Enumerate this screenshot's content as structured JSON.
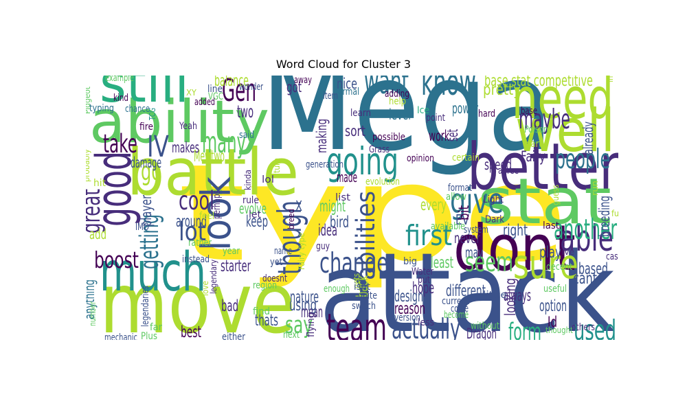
{
  "chart_data": {
    "type": "wordcloud",
    "title": "Word Cloud for Cluster 3",
    "palette": [
      "#440154",
      "#472d7b",
      "#3b528b",
      "#2c728e",
      "#21918c",
      "#28ae80",
      "#5ec962",
      "#addc30",
      "#fde725"
    ],
    "words": [
      {
        "text": "type",
        "weight": 100,
        "color": "#fde725"
      },
      {
        "text": "Mega",
        "weight": 92,
        "color": "#2c728e"
      },
      {
        "text": "attack",
        "weight": 82,
        "color": "#3b528b"
      },
      {
        "text": "move",
        "weight": 62,
        "color": "#addc30"
      },
      {
        "text": "battle",
        "weight": 48,
        "color": "#addc30"
      },
      {
        "text": "better",
        "weight": 48,
        "color": "#472d7b"
      },
      {
        "text": "stat",
        "weight": 47,
        "color": "#5ec962"
      },
      {
        "text": "dont",
        "weight": 47,
        "color": "#440154"
      },
      {
        "text": "ability",
        "weight": 44,
        "color": "#5ec962"
      },
      {
        "text": "well",
        "weight": 44,
        "color": "#addc30"
      },
      {
        "text": "need",
        "weight": 42,
        "color": "#addc30"
      },
      {
        "text": "still",
        "weight": 40,
        "color": "#28ae80"
      },
      {
        "text": "much",
        "weight": 40,
        "color": "#21918c"
      },
      {
        "text": "good",
        "weight": 36,
        "color": "#472d7b"
      },
      {
        "text": "look",
        "weight": 30,
        "color": "#3b528b"
      },
      {
        "text": "sure",
        "weight": 30,
        "color": "#addc30"
      },
      {
        "text": "going",
        "weight": 28,
        "color": "#21918c"
      },
      {
        "text": "team",
        "weight": 28,
        "color": "#440154"
      },
      {
        "text": "know",
        "weight": 27,
        "color": "#2c728e"
      },
      {
        "text": "able",
        "weight": 27,
        "color": "#472d7b"
      },
      {
        "text": "give",
        "weight": 26,
        "color": "#2c728e"
      },
      {
        "text": "want",
        "weight": 25,
        "color": "#2c728e"
      },
      {
        "text": "though",
        "weight": 24,
        "color": "#3b528b"
      },
      {
        "text": "Gen",
        "weight": 23,
        "color": "#440154"
      },
      {
        "text": "many",
        "weight": 22,
        "color": "#5ec962"
      },
      {
        "text": "IV",
        "weight": 22,
        "color": "#3b528b"
      },
      {
        "text": "change",
        "weight": 21,
        "color": "#3b528b"
      },
      {
        "text": "first",
        "weight": 21,
        "color": "#21918c"
      },
      {
        "text": "another",
        "weight": 21,
        "color": "#28ae80"
      },
      {
        "text": "actually",
        "weight": 21,
        "color": "#3b528b"
      },
      {
        "text": "used",
        "weight": 21,
        "color": "#21918c"
      },
      {
        "text": "maybe",
        "weight": 20,
        "color": "#472d7b"
      },
      {
        "text": "seem",
        "weight": 20,
        "color": "#5ec962"
      },
      {
        "text": "people",
        "weight": 20,
        "color": "#2c728e"
      },
      {
        "text": "abilities",
        "weight": 19,
        "color": "#3b528b"
      },
      {
        "text": "getting",
        "weight": 19,
        "color": "#2c728e"
      },
      {
        "text": "great",
        "weight": 19,
        "color": "#472d7b"
      },
      {
        "text": "cool",
        "weight": 19,
        "color": "#472d7b"
      },
      {
        "text": "lot",
        "weight": 19,
        "color": "#3b528b"
      },
      {
        "text": "go",
        "weight": 19,
        "color": "#addc30"
      },
      {
        "text": "take",
        "weight": 19,
        "color": "#440154"
      },
      {
        "text": "form",
        "weight": 18,
        "color": "#28ae80"
      },
      {
        "text": "say",
        "weight": 18,
        "color": "#5ec962"
      },
      {
        "text": "boost",
        "weight": 17,
        "color": "#440154"
      },
      {
        "text": "two",
        "weight": 13,
        "color": "#472d7b"
      },
      {
        "text": "base stat competitive",
        "weight": 12,
        "color": "#addc30"
      },
      {
        "text": "pretty",
        "weight": 12,
        "color": "#addc30"
      },
      {
        "text": "balance",
        "weight": 12,
        "color": "#addc30"
      },
      {
        "text": "Mewtwo",
        "weight": 12,
        "color": "#addc30"
      },
      {
        "text": "makes",
        "weight": 11,
        "color": "#472d7b"
      },
      {
        "text": "damage",
        "weight": 11,
        "color": "#3b528b"
      },
      {
        "text": "player",
        "weight": 11,
        "color": "#3b528b"
      },
      {
        "text": "around",
        "weight": 12,
        "color": "#3b528b"
      },
      {
        "text": "keep",
        "weight": 12,
        "color": "#3b528b"
      },
      {
        "text": "evolve",
        "weight": 11,
        "color": "#5ec962"
      },
      {
        "text": "starter",
        "weight": 12,
        "color": "#472d7b"
      },
      {
        "text": "nature",
        "weight": 12,
        "color": "#3b528b"
      },
      {
        "text": "hope",
        "weight": 12,
        "color": "#472d7b"
      },
      {
        "text": "different",
        "weight": 12,
        "color": "#3b528b"
      },
      {
        "text": "always",
        "weight": 12,
        "color": "#472d7b"
      },
      {
        "text": "option",
        "weight": 12,
        "color": "#3b528b"
      },
      {
        "text": "might",
        "weight": 12,
        "color": "#5ec962"
      },
      {
        "text": "bird",
        "weight": 12,
        "color": "#3b528b"
      },
      {
        "text": "idea",
        "weight": 12,
        "color": "#472d7b"
      },
      {
        "text": "every",
        "weight": 12,
        "color": "#addc30"
      },
      {
        "text": "least",
        "weight": 12,
        "color": "#5ec962"
      },
      {
        "text": "design",
        "weight": 12,
        "color": "#3b528b"
      },
      {
        "text": "reason",
        "weight": 12,
        "color": "#440154"
      },
      {
        "text": "back",
        "weight": 12,
        "color": "#addc30"
      },
      {
        "text": "mean",
        "weight": 12,
        "color": "#472d7b"
      },
      {
        "text": "using",
        "weight": 12,
        "color": "#3b528b"
      },
      {
        "text": "thats",
        "weight": 12,
        "color": "#3b528b"
      },
      {
        "text": "bad",
        "weight": 12,
        "color": "#472d7b"
      },
      {
        "text": "best",
        "weight": 12,
        "color": "#440154"
      },
      {
        "text": "Dragon",
        "weight": 11,
        "color": "#472d7b"
      },
      {
        "text": "Id",
        "weight": 11,
        "color": "#440154"
      },
      {
        "text": "based",
        "weight": 12,
        "color": "#3b528b"
      },
      {
        "text": "cant",
        "weight": 12,
        "color": "#3b528b"
      },
      {
        "text": "play",
        "weight": 12,
        "color": "#3b528b"
      },
      {
        "text": "right",
        "weight": 12,
        "color": "#3b528b"
      },
      {
        "text": "looking",
        "weight": 11,
        "color": "#472d7b"
      },
      {
        "text": "speed",
        "weight": 11,
        "color": "#472d7b"
      },
      {
        "text": "Fairy",
        "weight": 11,
        "color": "#472d7b"
      },
      {
        "text": "breeding",
        "weight": 11,
        "color": "#3b528b"
      },
      {
        "text": "already",
        "weight": 10,
        "color": "#3b528b"
      },
      {
        "text": "work",
        "weight": 11,
        "color": "#440154"
      },
      {
        "text": "set",
        "weight": 11,
        "color": "#472d7b"
      },
      {
        "text": "power",
        "weight": 11,
        "color": "#2c728e"
      },
      {
        "text": "level",
        "weight": 11,
        "color": "#2c728e"
      },
      {
        "text": "sort",
        "weight": 11,
        "color": "#472d7b"
      },
      {
        "text": "making",
        "weight": 10,
        "color": "#472d7b"
      },
      {
        "text": "made",
        "weight": 10,
        "color": "#440154"
      },
      {
        "text": "never",
        "weight": 11,
        "color": "#472d7b"
      },
      {
        "text": "may",
        "weight": 11,
        "color": "#3b528b"
      },
      {
        "text": "nice",
        "weight": 11,
        "color": "#3b528b"
      },
      {
        "text": "got",
        "weight": 11,
        "color": "#472d7b"
      },
      {
        "text": "EV",
        "weight": 10,
        "color": "#3b528b"
      },
      {
        "text": "bit",
        "weight": 10,
        "color": "#440154"
      },
      {
        "text": "X",
        "weight": 10,
        "color": "#3b528b"
      },
      {
        "text": "anything",
        "weight": 10,
        "color": "#2c728e"
      },
      {
        "text": "add",
        "weight": 10,
        "color": "#addc30"
      },
      {
        "text": "example",
        "weight": 7,
        "color": "#5ec962"
      },
      {
        "text": "kind",
        "weight": 7,
        "color": "#440154"
      },
      {
        "text": "Pidgeot",
        "weight": 6,
        "color": "#5ec962"
      },
      {
        "text": "typing",
        "weight": 7,
        "color": "#2c728e"
      },
      {
        "text": "chance",
        "weight": 7,
        "color": "#2c728e"
      },
      {
        "text": "TCG",
        "weight": 6,
        "color": "#21918c"
      },
      {
        "text": "fire",
        "weight": 7,
        "color": "#440154"
      },
      {
        "text": "Yeah",
        "weight": 7,
        "color": "#472d7b"
      },
      {
        "text": "XY",
        "weight": 6,
        "color": "#addc30"
      },
      {
        "text": "line",
        "weight": 7,
        "color": "#3b528b"
      },
      {
        "text": "VGC",
        "weight": 7,
        "color": "#5ec962"
      },
      {
        "text": "added",
        "weight": 7,
        "color": "#440154"
      },
      {
        "text": "wonder",
        "weight": 7,
        "color": "#3b528b"
      },
      {
        "text": "said",
        "weight": 7,
        "color": "#2c728e"
      },
      {
        "text": "away",
        "weight": 7,
        "color": "#440154"
      },
      {
        "text": "normal",
        "weight": 7,
        "color": "#2c728e"
      },
      {
        "text": "item",
        "weight": 7,
        "color": "#3b528b"
      },
      {
        "text": "adding",
        "weight": 7,
        "color": "#440154"
      },
      {
        "text": "help",
        "weight": 7,
        "color": "#addc30"
      },
      {
        "text": "learn",
        "weight": 7,
        "color": "#472d7b"
      },
      {
        "text": "Ice",
        "weight": 7,
        "color": "#28ae80"
      },
      {
        "text": "point",
        "weight": 7,
        "color": "#472d7b"
      },
      {
        "text": "hard",
        "weight": 7,
        "color": "#440154"
      },
      {
        "text": "base",
        "weight": 7,
        "color": "#440154"
      },
      {
        "text": "Poison",
        "weight": 7,
        "color": "#5ec962"
      },
      {
        "text": "interesting",
        "weight": 6,
        "color": "#addc30"
      },
      {
        "text": "possible",
        "weight": 7,
        "color": "#440154"
      },
      {
        "text": "Grass",
        "weight": 7,
        "color": "#472d7b"
      },
      {
        "text": "part",
        "weight": 7,
        "color": "#addc30"
      },
      {
        "text": "opinion",
        "weight": 7,
        "color": "#440154"
      },
      {
        "text": "certain",
        "weight": 7,
        "color": "#addc30"
      },
      {
        "text": "generation",
        "weight": 7,
        "color": "#3b528b"
      },
      {
        "text": "agree",
        "weight": 7,
        "color": "#472d7b"
      },
      {
        "text": "turn",
        "weight": 6,
        "color": "#addc30"
      },
      {
        "text": "kinda",
        "weight": 6,
        "color": "#472d7b"
      },
      {
        "text": "lol",
        "weight": 7,
        "color": "#472d7b"
      },
      {
        "text": "guess",
        "weight": 6,
        "color": "#addc30"
      },
      {
        "text": "run",
        "weight": 6,
        "color": "#addc30"
      },
      {
        "text": "hit",
        "weight": 7,
        "color": "#addc30"
      },
      {
        "text": "probably",
        "weight": 6,
        "color": "#addc30"
      },
      {
        "text": "evolution",
        "weight": 7,
        "color": "#addc30"
      },
      {
        "text": "format",
        "weight": 7,
        "color": "#3b528b"
      },
      {
        "text": "allow",
        "weight": 7,
        "color": "#5ec962"
      },
      {
        "text": "Light",
        "weight": 7,
        "color": "#472d7b"
      },
      {
        "text": "Dark",
        "weight": 7,
        "color": "#472d7b"
      },
      {
        "text": "last",
        "weight": 7,
        "color": "#440154"
      },
      {
        "text": "breed",
        "weight": 6,
        "color": "#440154"
      },
      {
        "text": "rule",
        "weight": 7,
        "color": "#472d7b"
      },
      {
        "text": "perhaps",
        "weight": 7,
        "color": "#472d7b"
      },
      {
        "text": "feel",
        "weight": 7,
        "color": "#addc30"
      },
      {
        "text": "let",
        "weight": 7,
        "color": "#472d7b"
      },
      {
        "text": "list",
        "weight": 7,
        "color": "#472d7b"
      },
      {
        "text": "IMO",
        "weight": 7,
        "color": "#3b528b"
      },
      {
        "text": "available",
        "weight": 7,
        "color": "#5ec962"
      },
      {
        "text": "system",
        "weight": 7,
        "color": "#3b528b"
      },
      {
        "text": "case",
        "weight": 7,
        "color": "#472d7b"
      },
      {
        "text": "rather",
        "weight": 7,
        "color": "#5ec962"
      },
      {
        "text": "year",
        "weight": 7,
        "color": "#5ec962"
      },
      {
        "text": "decent",
        "weight": 7,
        "color": "#5ec962"
      },
      {
        "text": "lve",
        "weight": 6,
        "color": "#472d7b"
      },
      {
        "text": "instead",
        "weight": 7,
        "color": "#3b528b"
      },
      {
        "text": "name",
        "weight": 7,
        "color": "#3b528b"
      },
      {
        "text": "yet",
        "weight": 7,
        "color": "#3b528b"
      },
      {
        "text": "big",
        "weight": 7,
        "color": "#3b528b"
      },
      {
        "text": "Fairy type",
        "weight": 6,
        "color": "#addc30"
      },
      {
        "text": "guy",
        "weight": 7,
        "color": "#472d7b"
      },
      {
        "text": "doesnt",
        "weight": 7,
        "color": "#472d7b"
      },
      {
        "text": "Water",
        "weight": 7,
        "color": "#472d7b"
      },
      {
        "text": "little",
        "weight": 7,
        "color": "#3b528b"
      },
      {
        "text": "region",
        "weight": 7,
        "color": "#5ec962"
      },
      {
        "text": "enough",
        "weight": 7,
        "color": "#5ec962"
      },
      {
        "text": "gets",
        "weight": 6,
        "color": "#addc30"
      },
      {
        "text": "put",
        "weight": 7,
        "color": "#472d7b"
      },
      {
        "text": "isnt",
        "weight": 7,
        "color": "#3b528b"
      },
      {
        "text": "useful",
        "weight": 7,
        "color": "#5ec962"
      },
      {
        "text": "love",
        "weight": 6,
        "color": "#addc30"
      },
      {
        "text": "quite",
        "weight": 7,
        "color": "#3b528b"
      },
      {
        "text": "current",
        "weight": 7,
        "color": "#3b528b"
      },
      {
        "text": "come",
        "weight": 7,
        "color": "#3b528b"
      },
      {
        "text": "legendary",
        "weight": 6,
        "color": "#472d7b"
      },
      {
        "text": "legendaries",
        "weight": 7,
        "color": "#3b528b"
      },
      {
        "text": "switch",
        "weight": 7,
        "color": "#3b528b"
      },
      {
        "text": "become",
        "weight": 7,
        "color": "#5ec962"
      },
      {
        "text": "number",
        "weight": 6,
        "color": "#5ec962"
      },
      {
        "text": "far",
        "weight": 7,
        "color": "#5ec962"
      },
      {
        "text": "find",
        "weight": 7,
        "color": "#5ec962"
      },
      {
        "text": "version",
        "weight": 7,
        "color": "#3b528b"
      },
      {
        "text": "less",
        "weight": 7,
        "color": "#472d7b"
      },
      {
        "text": "without",
        "weight": 7,
        "color": "#5ec962"
      },
      {
        "text": "thought",
        "weight": 6,
        "color": "#5ec962"
      },
      {
        "text": "others",
        "weight": 7,
        "color": "#472d7b"
      },
      {
        "text": "flying",
        "weight": 7,
        "color": "#472d7b"
      },
      {
        "text": "next",
        "weight": 7,
        "color": "#5ec962"
      },
      {
        "text": "mechanic",
        "weight": 7,
        "color": "#3b528b"
      },
      {
        "text": "Plus",
        "weight": 7,
        "color": "#5ec962"
      },
      {
        "text": "either",
        "weight": 7,
        "color": "#3b528b"
      },
      {
        "text": "fun",
        "weight": 6,
        "color": "#addc30"
      }
    ]
  }
}
